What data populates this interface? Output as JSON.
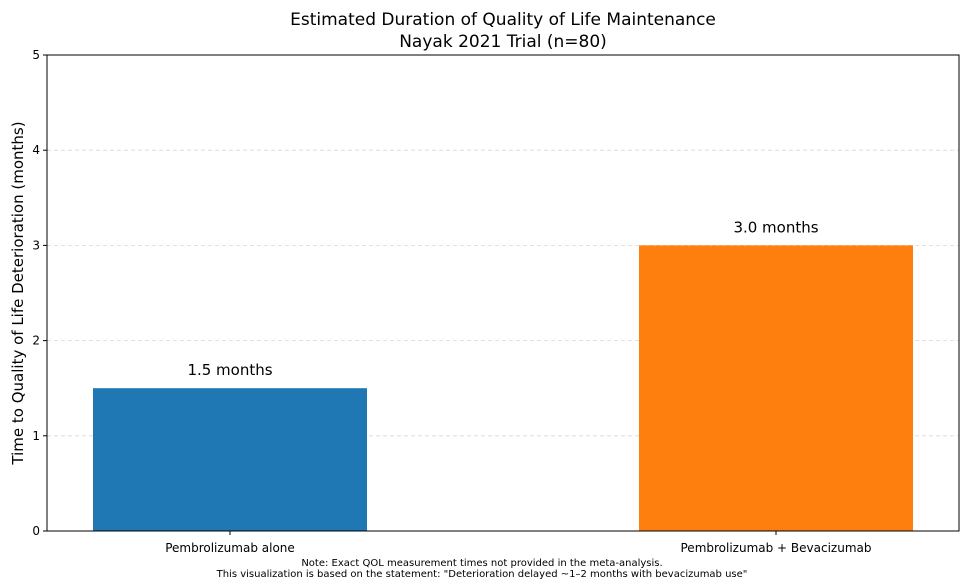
{
  "chart_data": {
    "type": "bar",
    "title": "Estimated Duration of Quality of Life Maintenance",
    "subtitle": "Nayak 2021 Trial (n=80)",
    "xlabel": "",
    "ylabel": "Time to Quality of Life Deterioration (months)",
    "categories": [
      "Pembrolizumab alone",
      "Pembrolizumab + Bevacizumab"
    ],
    "values": [
      1.5,
      3.0
    ],
    "data_labels": [
      "1.5 months",
      "3.0 months"
    ],
    "colors": [
      "#1f77b4",
      "#ff7f0e"
    ],
    "ylim": [
      0,
      5
    ],
    "yticks": [
      0,
      1,
      2,
      3,
      4,
      5
    ],
    "grid": "y-dashed",
    "legend": "none"
  },
  "notes": [
    "Note: Exact QOL measurement times not provided in the meta-analysis.",
    "This visualization is based on the statement: \"Deterioration delayed ~1–2 months with bevacizumab use\""
  ]
}
